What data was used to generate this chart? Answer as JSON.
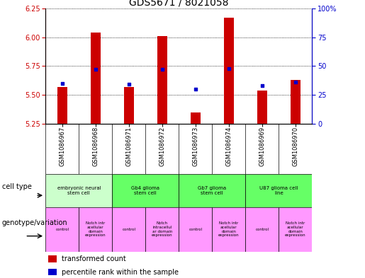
{
  "title": "GDS5671 / 8021058",
  "samples": [
    "GSM1086967",
    "GSM1086968",
    "GSM1086971",
    "GSM1086972",
    "GSM1086973",
    "GSM1086974",
    "GSM1086969",
    "GSM1086970"
  ],
  "transformed_count": [
    5.57,
    6.04,
    5.57,
    6.01,
    5.35,
    6.17,
    5.54,
    5.63
  ],
  "percentile_rank": [
    35,
    47,
    34,
    47,
    30,
    48,
    33,
    36
  ],
  "ylim_left": [
    5.25,
    6.25
  ],
  "ylim_right": [
    0,
    100
  ],
  "yticks_left": [
    5.25,
    5.5,
    5.75,
    6.0,
    6.25
  ],
  "yticks_right": [
    0,
    25,
    50,
    75,
    100
  ],
  "bar_color": "#cc0000",
  "dot_color": "#0000cc",
  "bar_bottom": 5.25,
  "cell_types": [
    {
      "label": "embryonic neural\nstem cell",
      "start": 0,
      "end": 2,
      "color": "#ccffcc"
    },
    {
      "label": "Gb4 glioma\nstem cell",
      "start": 2,
      "end": 4,
      "color": "#66ff66"
    },
    {
      "label": "Gb7 glioma\nstem cell",
      "start": 4,
      "end": 6,
      "color": "#66ff66"
    },
    {
      "label": "U87 glioma cell\nline",
      "start": 6,
      "end": 8,
      "color": "#66ff66"
    }
  ],
  "genotype_variation": [
    {
      "label": "control",
      "start": 0,
      "end": 1,
      "color": "#ff99ff"
    },
    {
      "label": "Notch intr\nacellular\ndomain\nexpression",
      "start": 1,
      "end": 2,
      "color": "#ff99ff"
    },
    {
      "label": "control",
      "start": 2,
      "end": 3,
      "color": "#ff99ff"
    },
    {
      "label": "Notch\nintracellul\nar domain\nexpression",
      "start": 3,
      "end": 4,
      "color": "#ff99ff"
    },
    {
      "label": "control",
      "start": 4,
      "end": 5,
      "color": "#ff99ff"
    },
    {
      "label": "Notch intr\nacellular\ndomain\nexpression",
      "start": 5,
      "end": 6,
      "color": "#ff99ff"
    },
    {
      "label": "control",
      "start": 6,
      "end": 7,
      "color": "#ff99ff"
    },
    {
      "label": "Notch intr\nacellular\ndomain\nexpression",
      "start": 7,
      "end": 8,
      "color": "#ff99ff"
    }
  ],
  "left_tick_color": "#cc0000",
  "right_tick_color": "#0000cc",
  "title_fontsize": 10,
  "tick_fontsize": 7,
  "sample_fontsize": 6,
  "annotation_fontsize": 5.5,
  "legend_fontsize": 7,
  "row_label_fontsize": 7
}
